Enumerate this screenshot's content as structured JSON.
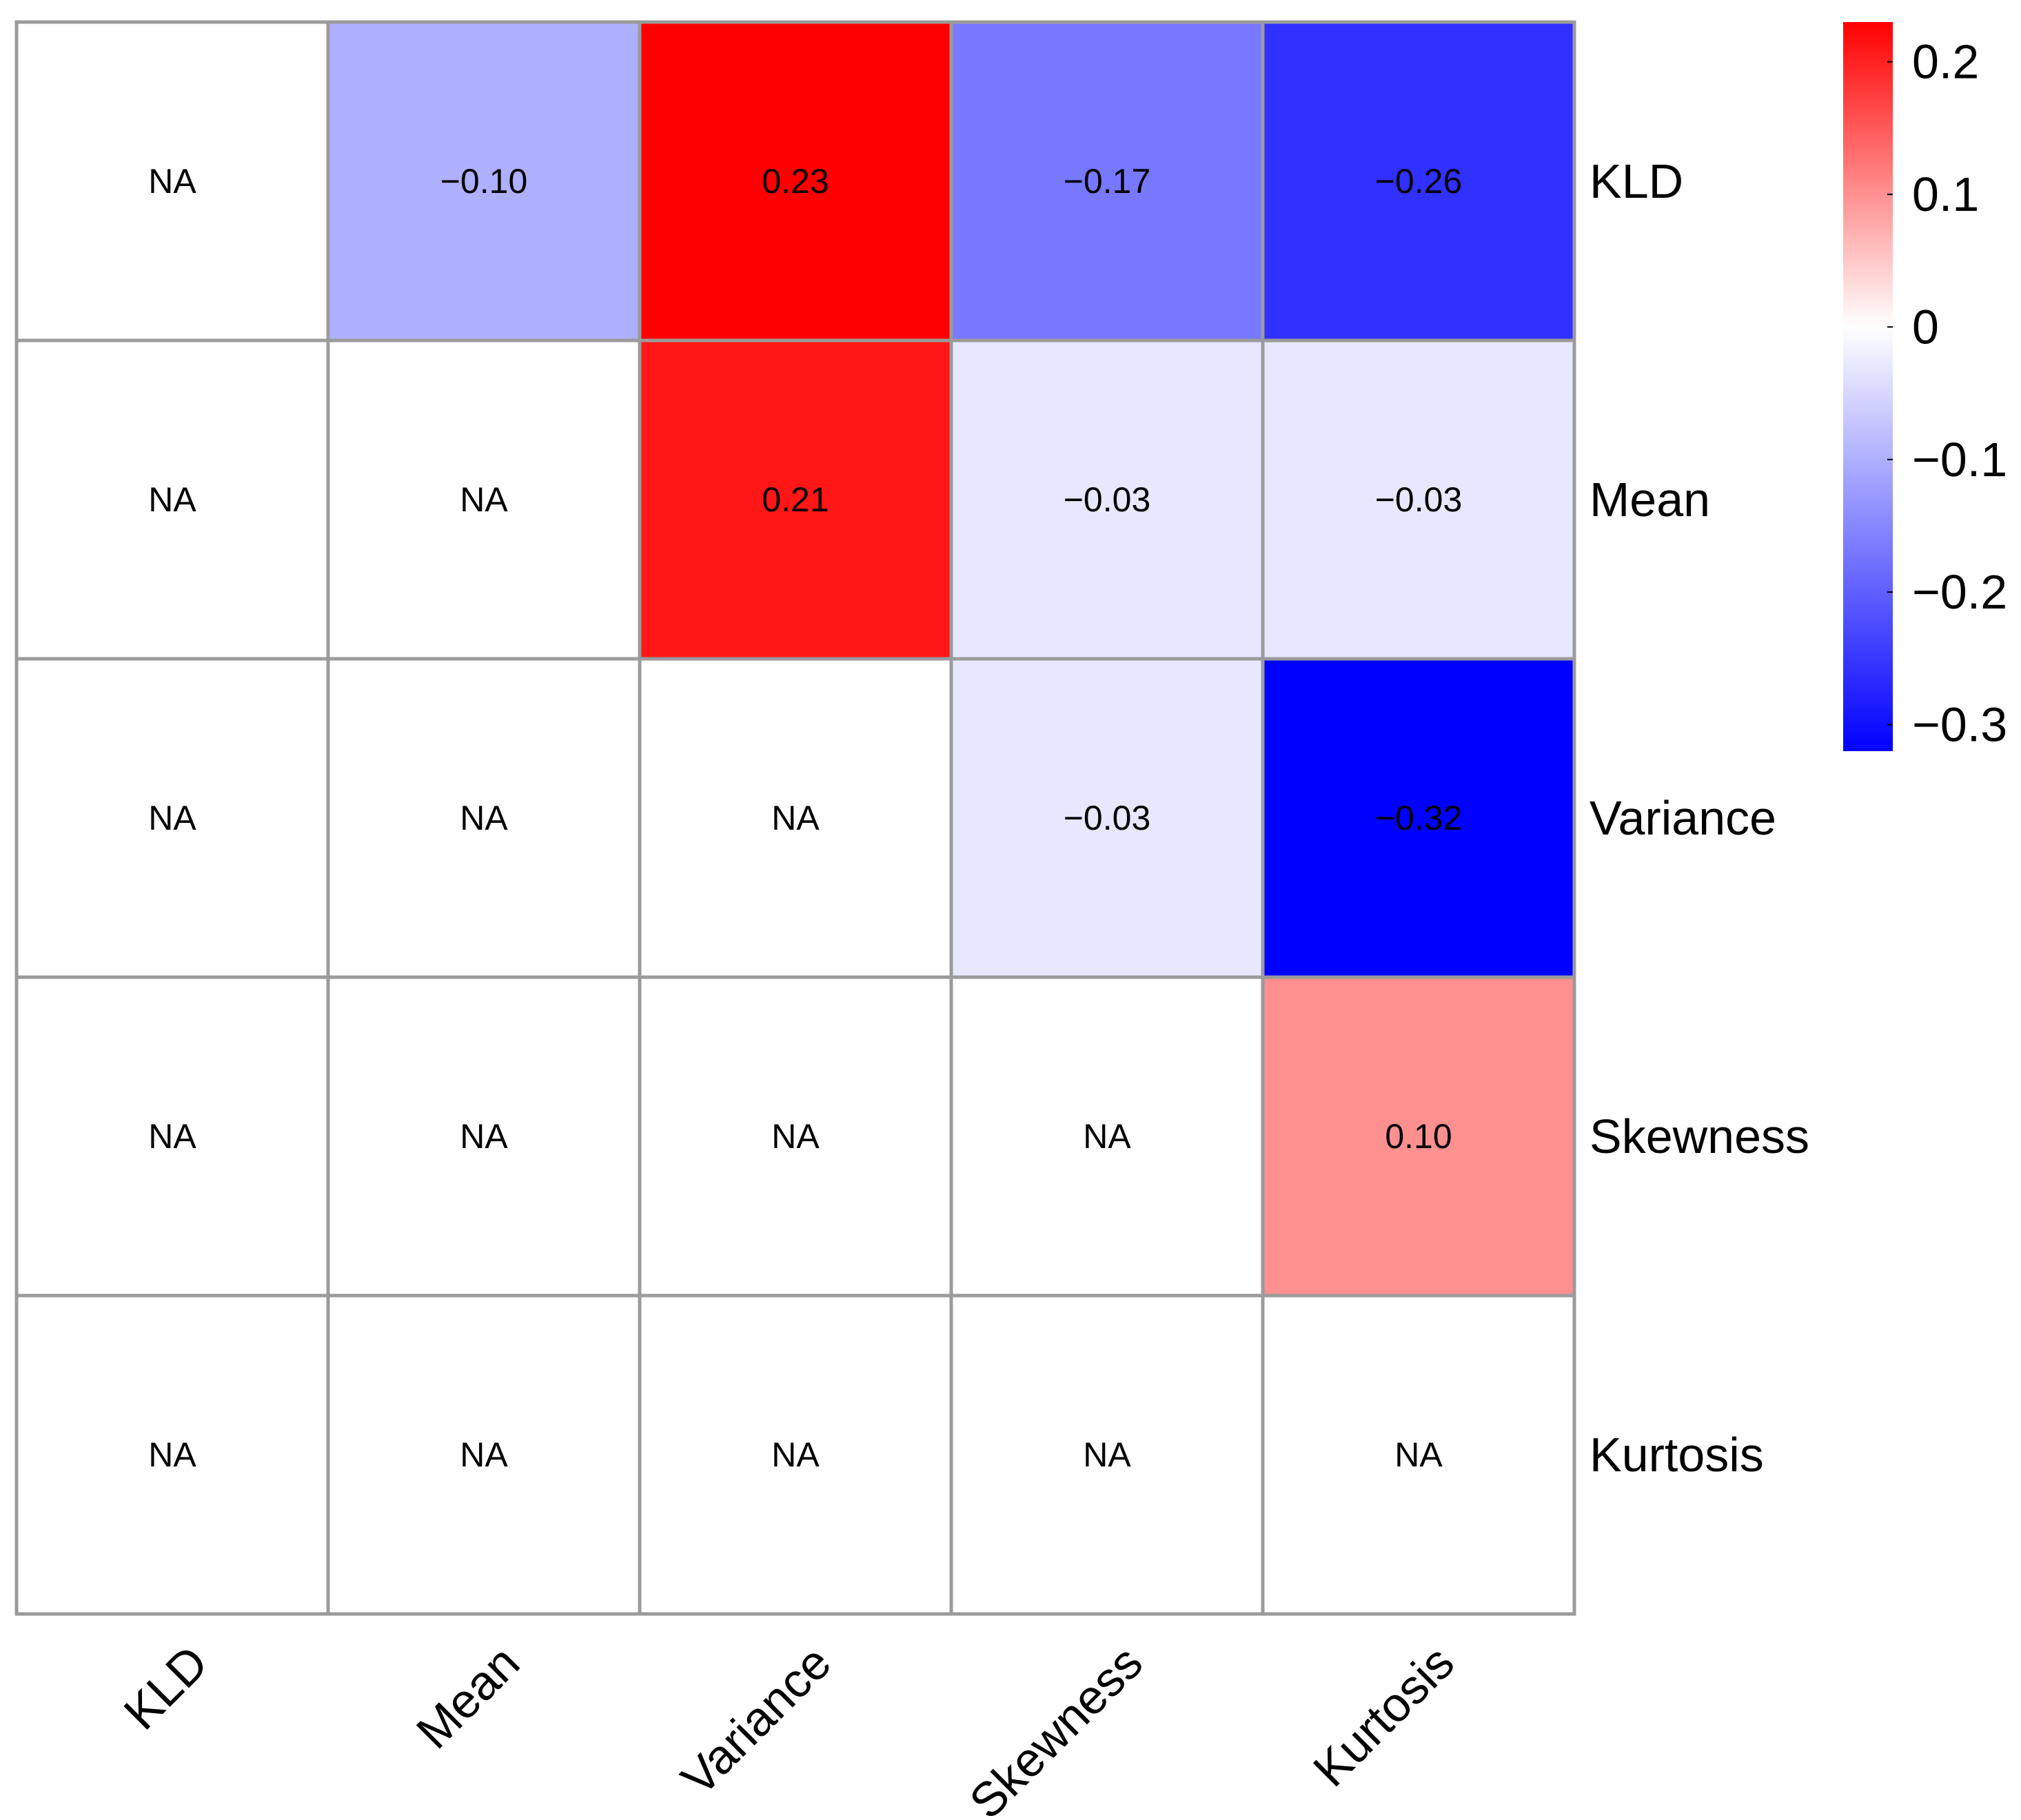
{
  "chart_data": {
    "type": "heatmap",
    "title": "",
    "rows": [
      "KLD",
      "Mean",
      "Variance",
      "Skewness",
      "Kurtosis"
    ],
    "columns": [
      "KLD",
      "Mean",
      "Variance",
      "Skewness",
      "Kurtosis"
    ],
    "values": [
      [
        null,
        -0.1,
        0.23,
        -0.17,
        -0.26
      ],
      [
        null,
        null,
        0.21,
        -0.03,
        -0.03
      ],
      [
        null,
        null,
        null,
        -0.03,
        -0.32
      ],
      [
        null,
        null,
        null,
        null,
        0.1
      ],
      [
        null,
        null,
        null,
        null,
        null
      ]
    ],
    "labels": [
      [
        "NA",
        "−0.10",
        "0.23",
        "−0.17",
        "−0.26"
      ],
      [
        "NA",
        "NA",
        "0.21",
        "−0.03",
        "−0.03"
      ],
      [
        "NA",
        "NA",
        "NA",
        "−0.03",
        "−0.32"
      ],
      [
        "NA",
        "NA",
        "NA",
        "NA",
        "0.10"
      ],
      [
        "NA",
        "NA",
        "NA",
        "NA",
        "NA"
      ]
    ],
    "colorbar": {
      "range": [
        -0.32,
        0.23
      ],
      "ticks": [
        0.2,
        0.1,
        0,
        -0.1,
        -0.2,
        -0.3
      ],
      "tick_labels": [
        "0.2",
        "0.1",
        "0",
        "−0.1",
        "−0.2",
        "−0.3"
      ],
      "colors": {
        "low": "#0000ff",
        "mid": "#ffffff",
        "high": "#ff0000"
      }
    },
    "grid_color": "#9b9b9b",
    "na_color": "#ffffff"
  }
}
